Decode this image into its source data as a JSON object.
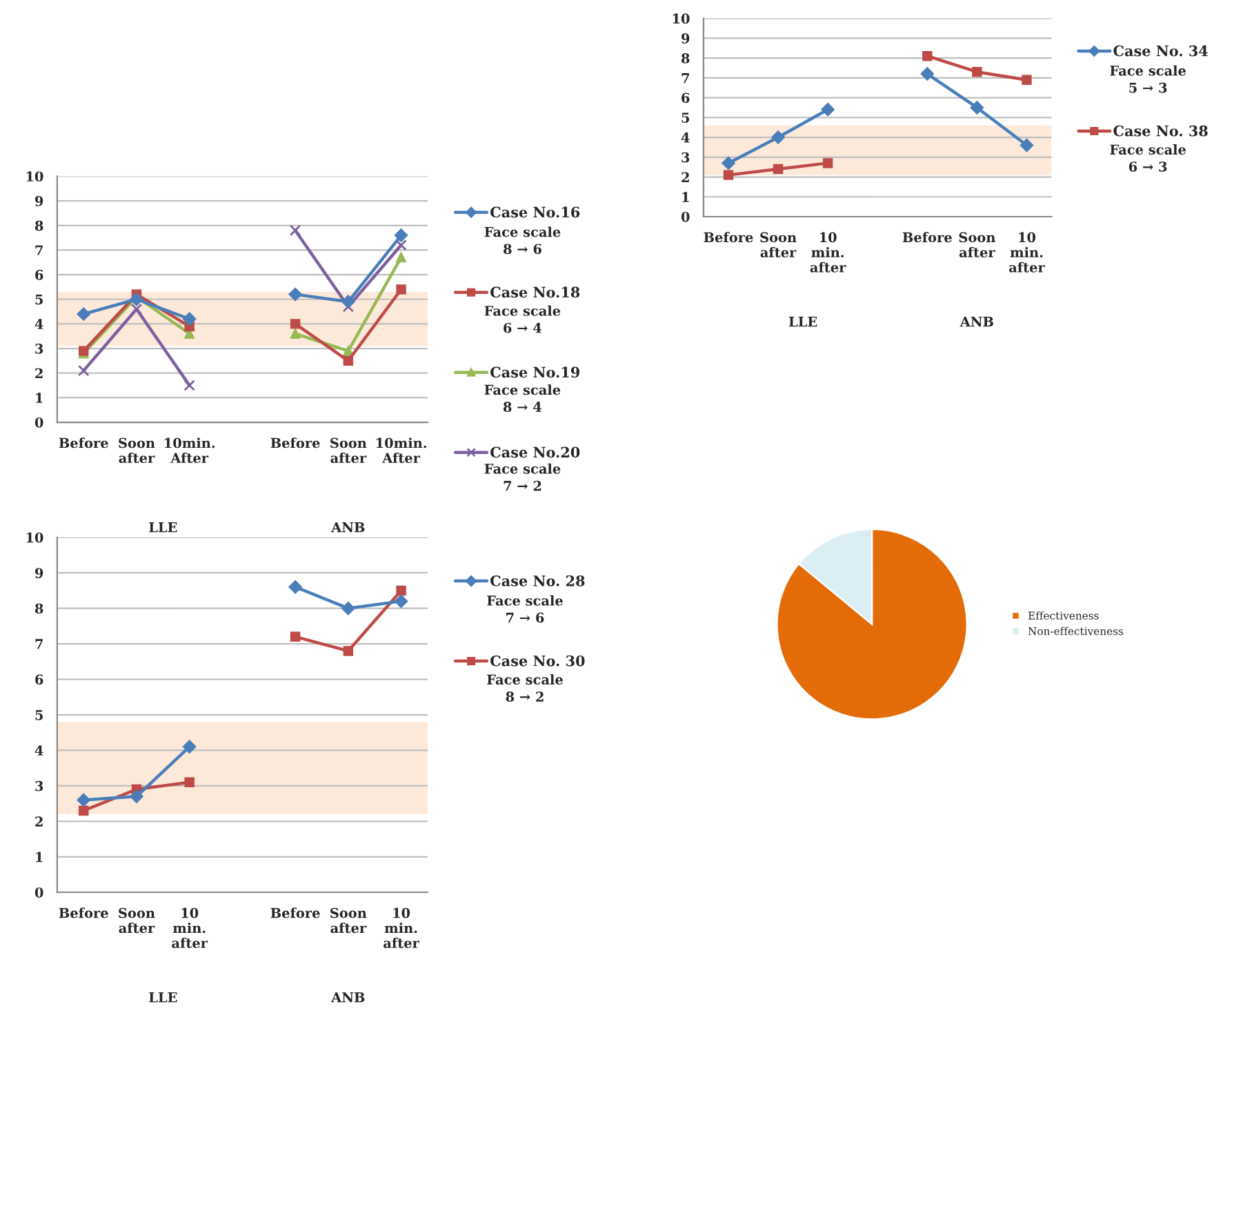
{
  "chart_data": [
    {
      "type": "line",
      "categories": [
        "Before",
        "Soon\nafter",
        "10min.\nAfter",
        null,
        "Before",
        "Soon\nafter",
        "10min.\nAfter"
      ],
      "ylim": [
        0,
        10
      ],
      "yticks": [
        0,
        1,
        2,
        3,
        4,
        5,
        6,
        7,
        8,
        9,
        10
      ],
      "grid": "y",
      "legend": "right",
      "bands": [
        {
          "axis": "y",
          "from": 3.1,
          "to": 5.3,
          "color": "#fde9d9"
        }
      ],
      "annotations": [
        "LLE",
        "ANB",
        "Face scale\n8 → 6",
        "Face scale\n6 → 4",
        "Face scale\n8 → 4",
        "Face scale\n7 → 2"
      ],
      "series": [
        {
          "name": "Case No.16",
          "color": "#4a7ebb",
          "marker": "diamond",
          "values": [
            4.4,
            5.0,
            4.2,
            null,
            5.2,
            4.9,
            7.6
          ]
        },
        {
          "name": "Case No.18",
          "color": "#be4b48",
          "marker": "square",
          "values": [
            2.9,
            5.2,
            3.9,
            null,
            4.0,
            2.5,
            5.4
          ]
        },
        {
          "name": "Case No.19",
          "color": "#98b954",
          "marker": "triangle",
          "values": [
            2.8,
            5.1,
            3.6,
            null,
            3.6,
            2.9,
            6.7
          ]
        },
        {
          "name": "Case No.20",
          "color": "#7d60a0",
          "marker": "cross",
          "values": [
            2.1,
            4.6,
            1.5,
            null,
            7.8,
            4.7,
            7.2
          ]
        }
      ]
    },
    {
      "type": "line",
      "categories": [
        "Before",
        "Soon\nafter",
        "10\nmin.\nafter",
        null,
        "Before",
        "Soon\nafter",
        "10\nmin.\nafter"
      ],
      "ylim": [
        0,
        10
      ],
      "yticks": [
        0,
        1,
        2,
        3,
        4,
        5,
        6,
        7,
        8,
        9,
        10
      ],
      "grid": "y",
      "legend": "right",
      "bands": [
        {
          "axis": "y",
          "from": 2.1,
          "to": 4.6,
          "color": "#fde9d9"
        }
      ],
      "annotations": [
        "LLE",
        "ANB",
        "Face scale\n5 → 3",
        "Face scale\n6 → 3"
      ],
      "series": [
        {
          "name": "Case No. 34",
          "color": "#4a7ebb",
          "marker": "diamond",
          "values": [
            2.7,
            4.0,
            5.4,
            null,
            7.2,
            5.5,
            3.6
          ]
        },
        {
          "name": "Case No. 38",
          "color": "#be4b48",
          "marker": "square",
          "values": [
            2.1,
            2.4,
            2.7,
            null,
            8.1,
            7.3,
            6.9
          ]
        }
      ]
    },
    {
      "type": "line",
      "categories": [
        "Before",
        "Soon\nafter",
        "10\nmin.\nafter",
        null,
        "Before",
        "Soon\nafter",
        "10\nmin.\nafter"
      ],
      "ylim": [
        0,
        10
      ],
      "yticks": [
        0,
        1,
        2,
        3,
        4,
        5,
        6,
        7,
        8,
        9,
        10
      ],
      "grid": "y",
      "legend": "right",
      "bands": [
        {
          "axis": "y",
          "from": 2.2,
          "to": 4.8,
          "color": "#fde9d9"
        }
      ],
      "annotations": [
        "LLE",
        "ANB",
        "Face scale\n7 → 6",
        "Face scale\n8 → 2"
      ],
      "series": [
        {
          "name": "Case No. 28",
          "color": "#4a7ebb",
          "marker": "diamond",
          "values": [
            2.6,
            2.7,
            4.1,
            null,
            8.6,
            8.0,
            8.2
          ]
        },
        {
          "name": "Case No. 30",
          "color": "#be4b48",
          "marker": "square",
          "values": [
            2.3,
            2.9,
            3.1,
            null,
            7.2,
            6.8,
            8.5
          ]
        }
      ]
    },
    {
      "type": "pie",
      "categories": [
        "Effectiveness",
        "Non-effectiveness"
      ],
      "values": [
        86,
        14
      ],
      "colors": [
        "#e36c09",
        "#dbeef4"
      ],
      "legend": "right"
    }
  ]
}
